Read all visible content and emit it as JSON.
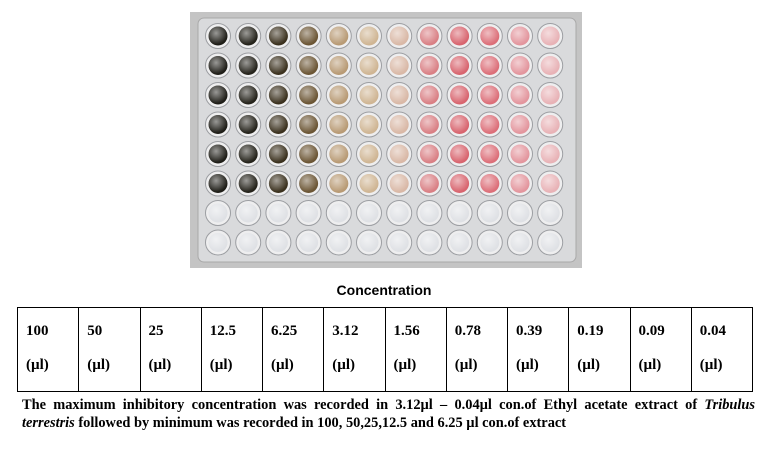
{
  "figure": {
    "plate_photo_icon": "96-well-plate-photo",
    "caption": "Concentration",
    "colors": {
      "background": "#ffffff",
      "plate_frame": "#bfbfbf",
      "text": "#000000"
    }
  },
  "table": {
    "cells": [
      {
        "value": "100",
        "unit": "(µl)"
      },
      {
        "value": "50",
        "unit": "(µl)"
      },
      {
        "value": "25",
        "unit": "(µl)"
      },
      {
        "value": "12.5",
        "unit": "(µl)"
      },
      {
        "value": "6.25",
        "unit": "(µl)"
      },
      {
        "value": "3.12",
        "unit": "(µl)"
      },
      {
        "value": "1.56",
        "unit": "(µl)"
      },
      {
        "value": "0.78",
        "unit": "(µl)"
      },
      {
        "value": "0.39",
        "unit": "(µl)"
      },
      {
        "value": "0.19",
        "unit": "(µl)"
      },
      {
        "value": "0.09",
        "unit": "(µl)"
      },
      {
        "value": "0.04",
        "unit": "(µl)"
      }
    ]
  },
  "note": {
    "part1": "The maximum inhibitory concentration was recorded in 3.12µl – 0.04µl con.of Ethyl acetate extract of ",
    "species": "Tribulus terrestris",
    "part2": " followed by minimum was recorded in 100, 50,25,12.5 and 6.25 µl con.of extract"
  }
}
